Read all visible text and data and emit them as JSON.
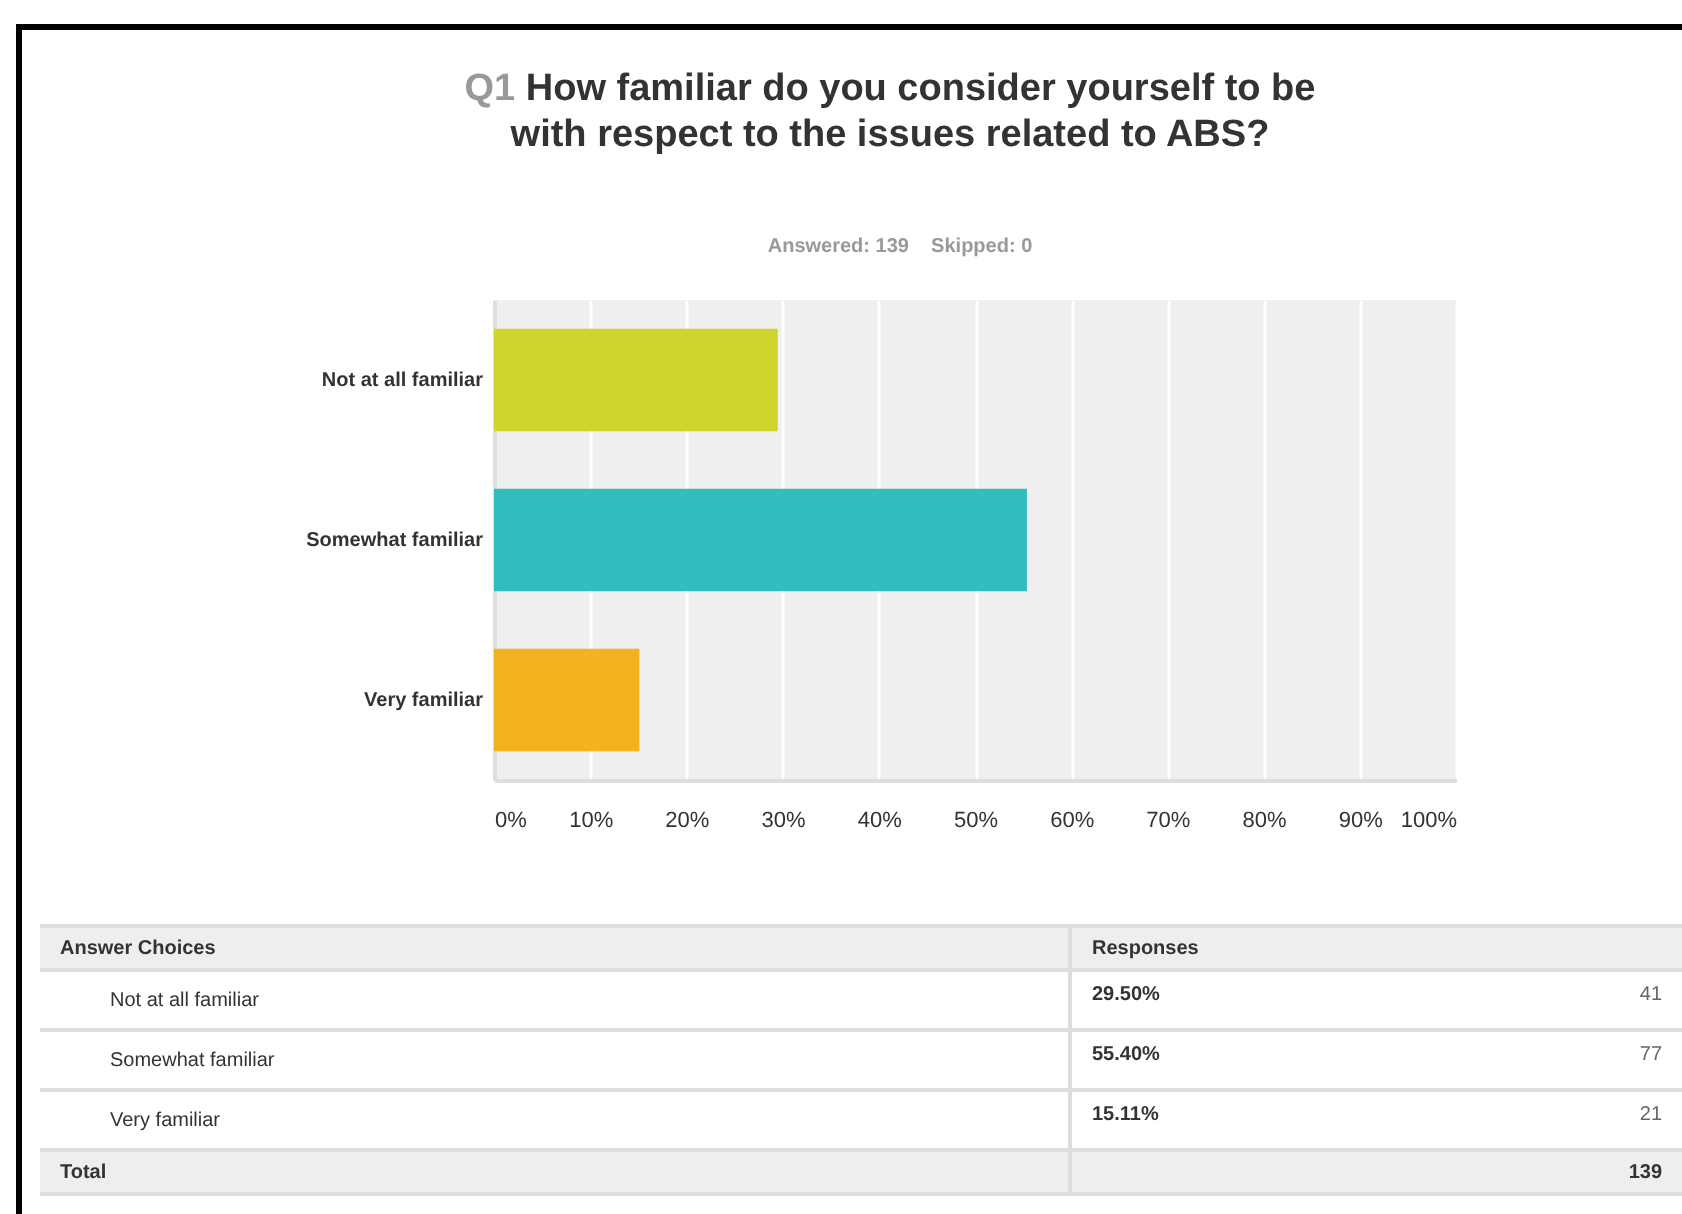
{
  "chart_data": {
    "type": "bar",
    "orientation": "horizontal",
    "title": "Q1 How familiar do you consider yourself to be with respect to the issues related to ABS?",
    "subtitle": "Answered: 139    Skipped: 0",
    "categories": [
      "Not at all familiar",
      "Somewhat familiar",
      "Very familiar"
    ],
    "values": [
      29.5,
      55.4,
      15.11
    ],
    "colors": [
      "#cfd52a",
      "#33bdbe",
      "#f6b11f"
    ],
    "xlim": [
      0,
      100
    ],
    "xticks": [
      {
        "value": 0,
        "label": "0%"
      },
      {
        "value": 10,
        "label": "10%"
      },
      {
        "value": 20,
        "label": "20%"
      },
      {
        "value": 30,
        "label": "30%"
      },
      {
        "value": 40,
        "label": "40%"
      },
      {
        "value": 50,
        "label": "50%"
      },
      {
        "value": 60,
        "label": "60%"
      },
      {
        "value": 70,
        "label": "70%"
      },
      {
        "value": 80,
        "label": "80%"
      },
      {
        "value": 90,
        "label": "90%"
      },
      {
        "value": 100,
        "label": "100%"
      }
    ],
    "grid": "x",
    "annotations": [
      "Answer Choices",
      "Responses",
      "29.50%",
      "41",
      "55.40%",
      "77",
      "15.11%",
      "21",
      "Total",
      "139"
    ]
  }
}
